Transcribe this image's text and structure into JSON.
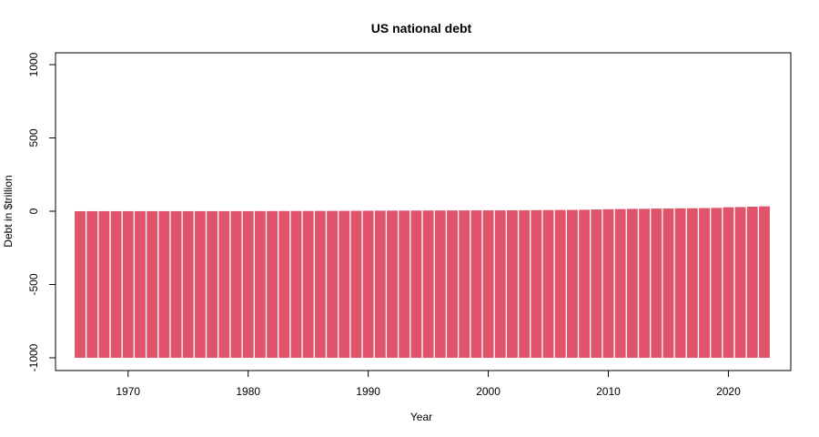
{
  "chart_data": {
    "type": "bar",
    "title": "US national debt",
    "xlabel": "Year",
    "ylabel": "Debt in $trillion",
    "xlim": [
      1966,
      2023
    ],
    "ylim": [
      -1000,
      1000
    ],
    "xticks": [
      1970,
      1980,
      1990,
      2000,
      2010,
      2020
    ],
    "yticks": [
      -1000,
      -500,
      0,
      500,
      1000
    ],
    "bar_color": "#DF536B",
    "baseline": -1000,
    "grid": false,
    "legend": "none",
    "x": [
      1966,
      1967,
      1968,
      1969,
      1970,
      1971,
      1972,
      1973,
      1974,
      1975,
      1976,
      1977,
      1978,
      1979,
      1980,
      1981,
      1982,
      1983,
      1984,
      1985,
      1986,
      1987,
      1988,
      1989,
      1990,
      1991,
      1992,
      1993,
      1994,
      1995,
      1996,
      1997,
      1998,
      1999,
      2000,
      2001,
      2002,
      2003,
      2004,
      2005,
      2006,
      2007,
      2008,
      2009,
      2010,
      2011,
      2012,
      2013,
      2014,
      2015,
      2016,
      2017,
      2018,
      2019,
      2020,
      2021,
      2022,
      2023
    ],
    "values": [
      0.32,
      0.33,
      0.35,
      0.35,
      0.38,
      0.41,
      0.44,
      0.47,
      0.49,
      0.58,
      0.65,
      0.71,
      0.78,
      0.83,
      0.91,
      1.0,
      1.1,
      1.4,
      1.6,
      1.8,
      2.1,
      2.3,
      2.6,
      2.9,
      3.2,
      3.7,
      4.1,
      4.4,
      4.7,
      4.97,
      5.2,
      5.4,
      5.5,
      5.7,
      5.7,
      5.8,
      6.2,
      6.8,
      7.4,
      7.9,
      8.5,
      9.0,
      10.0,
      11.9,
      13.6,
      14.8,
      16.1,
      16.7,
      17.8,
      18.2,
      19.6,
      20.2,
      21.5,
      22.7,
      27.0,
      28.4,
      30.9,
      33.2
    ]
  }
}
